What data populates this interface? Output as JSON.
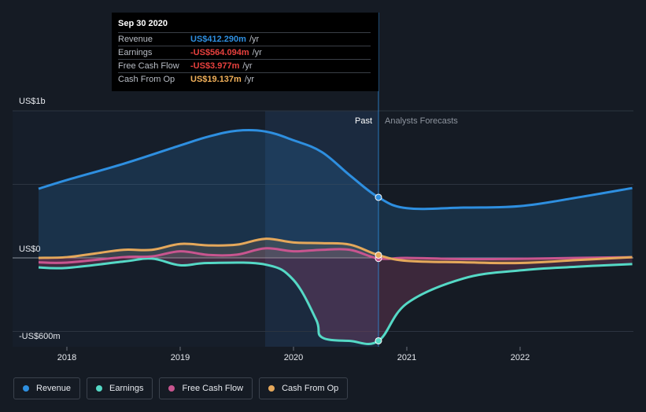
{
  "tooltip": {
    "date": "Sep 30 2020",
    "rows": [
      {
        "name": "Revenue",
        "value": "US$412.290m",
        "unit": "/yr",
        "color": "#2e8fe0"
      },
      {
        "name": "Earnings",
        "value": "-US$564.094m",
        "unit": "/yr",
        "color": "#e8413e"
      },
      {
        "name": "Free Cash Flow",
        "value": "-US$3.977m",
        "unit": "/yr",
        "color": "#e8413e"
      },
      {
        "name": "Cash From Op",
        "value": "US$19.137m",
        "unit": "/yr",
        "color": "#f2b15a"
      }
    ]
  },
  "legend": [
    {
      "label": "Revenue",
      "color": "#2e8fe0"
    },
    {
      "label": "Earnings",
      "color": "#55d9c6"
    },
    {
      "label": "Free Cash Flow",
      "color": "#c8558f"
    },
    {
      "label": "Cash From Op",
      "color": "#e5a85b"
    }
  ],
  "chart_data": {
    "type": "line",
    "y_tick_labels": [
      "US$1b",
      "US$0",
      "-US$600m"
    ],
    "x_tick_labels": [
      "2018",
      "2019",
      "2020",
      "2021",
      "2022"
    ],
    "x_ticks": [
      2018.0,
      2019.0,
      2020.0,
      2021.0,
      2022.0
    ],
    "xlim": [
      2017.25,
      2022.99
    ],
    "ylim": [
      -600,
      1000
    ],
    "past_label": "Past",
    "forecast_label": "Analysts Forecasts",
    "divider_x": 2020.75,
    "highlight_start": 2019.75,
    "series": [
      {
        "name": "Revenue",
        "color": "#2e8fe0",
        "points": [
          [
            2017.75,
            470
          ],
          [
            2018.0,
            530
          ],
          [
            2018.5,
            640
          ],
          [
            2019.0,
            765
          ],
          [
            2019.25,
            825
          ],
          [
            2019.5,
            865
          ],
          [
            2019.75,
            860
          ],
          [
            2020.0,
            800
          ],
          [
            2020.25,
            720
          ],
          [
            2020.5,
            560
          ],
          [
            2020.75,
            412
          ],
          [
            2021.0,
            338
          ],
          [
            2021.5,
            342
          ],
          [
            2022.0,
            352
          ],
          [
            2022.5,
            410
          ],
          [
            2022.99,
            475
          ]
        ]
      },
      {
        "name": "Earnings",
        "color": "#55d9c6",
        "points": [
          [
            2017.75,
            -65
          ],
          [
            2018.0,
            -68
          ],
          [
            2018.5,
            -25
          ],
          [
            2018.75,
            -5
          ],
          [
            2019.0,
            -50
          ],
          [
            2019.25,
            -35
          ],
          [
            2019.75,
            -45
          ],
          [
            2020.0,
            -150
          ],
          [
            2020.2,
            -420
          ],
          [
            2020.25,
            -540
          ],
          [
            2020.5,
            -565
          ],
          [
            2020.75,
            -564
          ],
          [
            2021.0,
            -310
          ],
          [
            2021.5,
            -140
          ],
          [
            2022.0,
            -85
          ],
          [
            2022.5,
            -60
          ],
          [
            2022.99,
            -42
          ]
        ]
      },
      {
        "name": "Free Cash Flow",
        "color": "#c8558f",
        "points": [
          [
            2017.75,
            -30
          ],
          [
            2018.0,
            -32
          ],
          [
            2018.5,
            5
          ],
          [
            2018.75,
            10
          ],
          [
            2019.0,
            45
          ],
          [
            2019.25,
            20
          ],
          [
            2019.5,
            22
          ],
          [
            2019.75,
            65
          ],
          [
            2020.0,
            45
          ],
          [
            2020.25,
            55
          ],
          [
            2020.5,
            55
          ],
          [
            2020.75,
            -4
          ],
          [
            2021.0,
            0
          ],
          [
            2021.5,
            -8
          ],
          [
            2022.0,
            -6
          ],
          [
            2022.5,
            0
          ],
          [
            2022.99,
            5
          ]
        ]
      },
      {
        "name": "Cash From Op",
        "color": "#e5a85b",
        "points": [
          [
            2017.75,
            0
          ],
          [
            2018.0,
            5
          ],
          [
            2018.25,
            30
          ],
          [
            2018.5,
            55
          ],
          [
            2018.75,
            55
          ],
          [
            2019.0,
            95
          ],
          [
            2019.25,
            85
          ],
          [
            2019.5,
            90
          ],
          [
            2019.75,
            130
          ],
          [
            2020.0,
            105
          ],
          [
            2020.25,
            100
          ],
          [
            2020.5,
            90
          ],
          [
            2020.75,
            19
          ],
          [
            2021.0,
            -20
          ],
          [
            2021.5,
            -30
          ],
          [
            2022.0,
            -35
          ],
          [
            2022.5,
            -15
          ],
          [
            2022.99,
            5
          ]
        ]
      }
    ]
  }
}
